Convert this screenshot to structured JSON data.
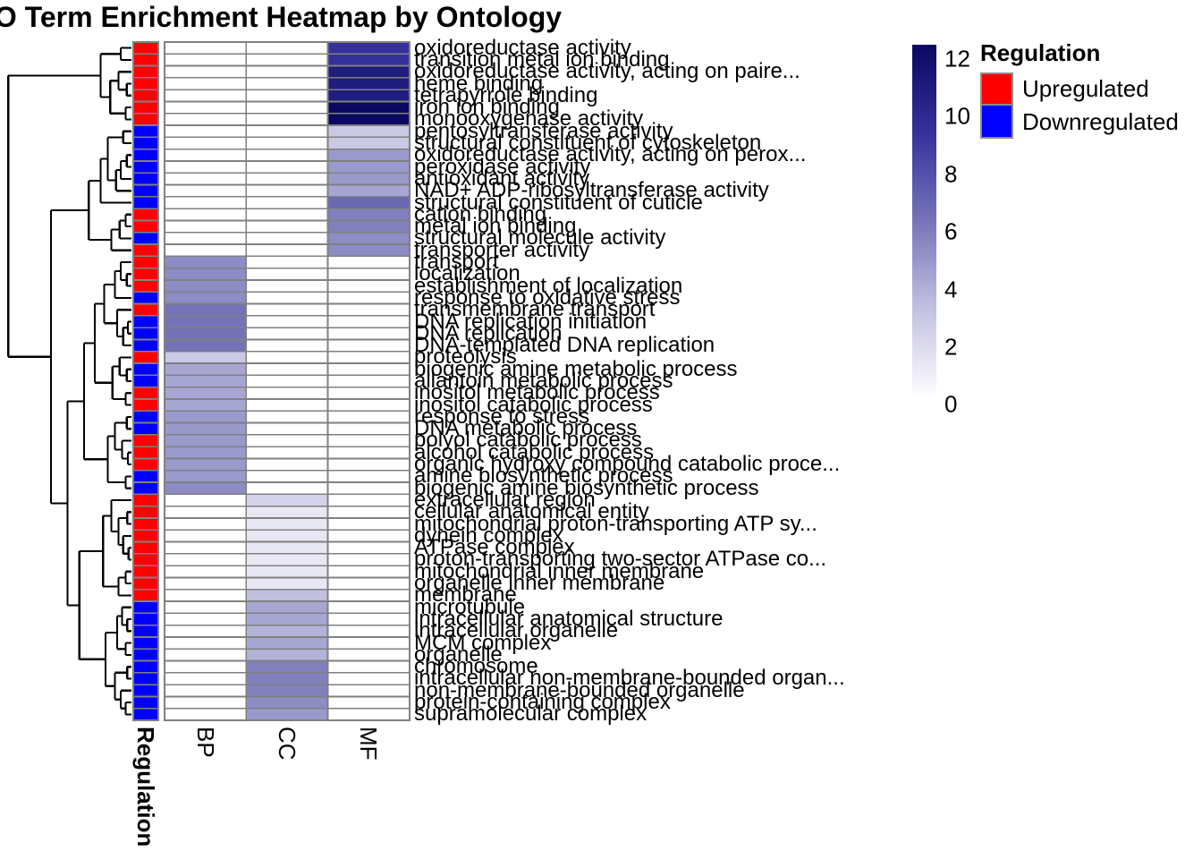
{
  "title": "GO Term Enrichment Heatmap by Ontology",
  "columns": {
    "annotation": "Regulation",
    "ontologies": [
      "BP",
      "CC",
      "MF"
    ]
  },
  "legend": {
    "title": "Regulation",
    "items": [
      {
        "label": "Upregulated",
        "color": "#FF0000"
      },
      {
        "label": "Downregulated",
        "color": "#0000FF"
      }
    ]
  },
  "colorbar": {
    "min": 0,
    "max": 12,
    "ticks": [
      12,
      10,
      8,
      6,
      4,
      2,
      0
    ],
    "stops": [
      {
        "v": 0,
        "c": "#FCFBFE"
      },
      {
        "v": 3,
        "c": "#C0BFE0"
      },
      {
        "v": 6,
        "c": "#7473B8"
      },
      {
        "v": 9,
        "c": "#34319B"
      },
      {
        "v": 12,
        "c": "#0A0860"
      }
    ]
  },
  "colors": {
    "grid": "#808080",
    "dendrogram": "#000000",
    "background": "#FFFFFF",
    "upregulated": "#FF0000",
    "downregulated": "#0000FF"
  },
  "chart_data": {
    "type": "heatmap",
    "title": "GO Term Enrichment Heatmap by Ontology",
    "columns": [
      "BP",
      "CC",
      "MF"
    ],
    "row_annotation_name": "Regulation",
    "scale": {
      "min": 0,
      "max": 12
    },
    "legend_position": "right",
    "rows": [
      {
        "label": "oxidoreductase activity",
        "regulation": "Upregulated",
        "ontology": "MF",
        "value": 9
      },
      {
        "label": "transition metal ion binding",
        "regulation": "Upregulated",
        "ontology": "MF",
        "value": 9
      },
      {
        "label": "oxidoreductase activity, acting on paire...",
        "regulation": "Upregulated",
        "ontology": "MF",
        "value": 10.5
      },
      {
        "label": "heme binding",
        "regulation": "Upregulated",
        "ontology": "MF",
        "value": 10.5
      },
      {
        "label": "tetrapyrrole binding",
        "regulation": "Upregulated",
        "ontology": "MF",
        "value": 10.5
      },
      {
        "label": "iron ion binding",
        "regulation": "Upregulated",
        "ontology": "MF",
        "value": 12
      },
      {
        "label": "monooxygenase activity",
        "regulation": "Upregulated",
        "ontology": "MF",
        "value": 12
      },
      {
        "label": "pentosyltransferase activity",
        "regulation": "Downregulated",
        "ontology": "MF",
        "value": 2.5
      },
      {
        "label": "structural constituent of cytoskeleton",
        "regulation": "Downregulated",
        "ontology": "MF",
        "value": 2.5
      },
      {
        "label": "oxidoreductase activity, acting on perox...",
        "regulation": "Downregulated",
        "ontology": "MF",
        "value": 4.5
      },
      {
        "label": "peroxidase activity",
        "regulation": "Downregulated",
        "ontology": "MF",
        "value": 4.5
      },
      {
        "label": "antioxidant activity",
        "regulation": "Downregulated",
        "ontology": "MF",
        "value": 4.5
      },
      {
        "label": "NAD+ ADP-ribosyltransferase activity",
        "regulation": "Downregulated",
        "ontology": "MF",
        "value": 4
      },
      {
        "label": "structural constituent of cuticle",
        "regulation": "Downregulated",
        "ontology": "MF",
        "value": 6.5
      },
      {
        "label": "cation binding",
        "regulation": "Upregulated",
        "ontology": "MF",
        "value": 5.5
      },
      {
        "label": "metal ion binding",
        "regulation": "Upregulated",
        "ontology": "MF",
        "value": 5.5
      },
      {
        "label": "structural molecule activity",
        "regulation": "Downregulated",
        "ontology": "MF",
        "value": 5
      },
      {
        "label": "transporter activity",
        "regulation": "Upregulated",
        "ontology": "MF",
        "value": 5
      },
      {
        "label": "transport",
        "regulation": "Upregulated",
        "ontology": "BP",
        "value": 5
      },
      {
        "label": "localization",
        "regulation": "Upregulated",
        "ontology": "BP",
        "value": 5
      },
      {
        "label": "establishment of localization",
        "regulation": "Upregulated",
        "ontology": "BP",
        "value": 5
      },
      {
        "label": "response to oxidative stress",
        "regulation": "Downregulated",
        "ontology": "BP",
        "value": 5
      },
      {
        "label": "transmembrane transport",
        "regulation": "Upregulated",
        "ontology": "BP",
        "value": 6
      },
      {
        "label": "DNA replication initiation",
        "regulation": "Downregulated",
        "ontology": "BP",
        "value": 6
      },
      {
        "label": "DNA replication",
        "regulation": "Downregulated",
        "ontology": "BP",
        "value": 6
      },
      {
        "label": "DNA-templated DNA replication",
        "regulation": "Downregulated",
        "ontology": "BP",
        "value": 6
      },
      {
        "label": "proteolysis",
        "regulation": "Upregulated",
        "ontology": "BP",
        "value": 2.5
      },
      {
        "label": "biogenic amine metabolic process",
        "regulation": "Downregulated",
        "ontology": "BP",
        "value": 4
      },
      {
        "label": "allantoin metabolic process",
        "regulation": "Downregulated",
        "ontology": "BP",
        "value": 4
      },
      {
        "label": "inositol metabolic process",
        "regulation": "Upregulated",
        "ontology": "BP",
        "value": 4
      },
      {
        "label": "inositol catabolic process",
        "regulation": "Upregulated",
        "ontology": "BP",
        "value": 4
      },
      {
        "label": "response to stress",
        "regulation": "Downregulated",
        "ontology": "BP",
        "value": 4.5
      },
      {
        "label": "DNA metabolic process",
        "regulation": "Downregulated",
        "ontology": "BP",
        "value": 4.5
      },
      {
        "label": "polyol catabolic process",
        "regulation": "Upregulated",
        "ontology": "BP",
        "value": 4.5
      },
      {
        "label": "alcohol catabolic process",
        "regulation": "Upregulated",
        "ontology": "BP",
        "value": 4.5
      },
      {
        "label": "organic hydroxy compound catabolic proce...",
        "regulation": "Upregulated",
        "ontology": "BP",
        "value": 4.5
      },
      {
        "label": "amine biosynthetic process",
        "regulation": "Downregulated",
        "ontology": "BP",
        "value": 4.5
      },
      {
        "label": "biogenic amine biosynthetic process",
        "regulation": "Downregulated",
        "ontology": "BP",
        "value": 5
      },
      {
        "label": "extracellular region",
        "regulation": "Upregulated",
        "ontology": "CC",
        "value": 2
      },
      {
        "label": "cellular anatomical entity",
        "regulation": "Upregulated",
        "ontology": "CC",
        "value": 1
      },
      {
        "label": "mitochondrial proton-transporting ATP sy...",
        "regulation": "Upregulated",
        "ontology": "CC",
        "value": 1
      },
      {
        "label": "dynein complex",
        "regulation": "Upregulated",
        "ontology": "CC",
        "value": 1
      },
      {
        "label": "ATPase complex",
        "regulation": "Upregulated",
        "ontology": "CC",
        "value": 1
      },
      {
        "label": "proton-transporting two-sector ATPase co...",
        "regulation": "Upregulated",
        "ontology": "CC",
        "value": 1
      },
      {
        "label": "mitochondrial inner membrane",
        "regulation": "Upregulated",
        "ontology": "CC",
        "value": 1
      },
      {
        "label": "organelle inner membrane",
        "regulation": "Upregulated",
        "ontology": "CC",
        "value": 1
      },
      {
        "label": "membrane",
        "regulation": "Upregulated",
        "ontology": "CC",
        "value": 3
      },
      {
        "label": "microtubule",
        "regulation": "Downregulated",
        "ontology": "CC",
        "value": 4
      },
      {
        "label": "intracellular anatomical structure",
        "regulation": "Downregulated",
        "ontology": "CC",
        "value": 4
      },
      {
        "label": "intracellular organelle",
        "regulation": "Downregulated",
        "ontology": "CC",
        "value": 3.5
      },
      {
        "label": "MCM complex",
        "regulation": "Downregulated",
        "ontology": "CC",
        "value": 4
      },
      {
        "label": "organelle",
        "regulation": "Downregulated",
        "ontology": "CC",
        "value": 3.5
      },
      {
        "label": "chromosome",
        "regulation": "Downregulated",
        "ontology": "CC",
        "value": 5.5
      },
      {
        "label": "intracellular non-membrane-bounded organ...",
        "regulation": "Downregulated",
        "ontology": "CC",
        "value": 5.5
      },
      {
        "label": "non-membrane-bounded organelle",
        "regulation": "Downregulated",
        "ontology": "CC",
        "value": 5.5
      },
      {
        "label": "protein-containing complex",
        "regulation": "Downregulated",
        "ontology": "CC",
        "value": 5
      },
      {
        "label": "supramolecular complex",
        "regulation": "Downregulated",
        "ontology": "CC",
        "value": 4.5
      }
    ],
    "row_dendrogram": {
      "d": 0.52,
      "c": [
        {
          "d": 0.13,
          "c": [
            {
              "d": 0.045,
              "c": [
                1,
                2
              ]
            },
            {
              "d": 0.09,
              "c": [
                {
                  "d": 0.055,
                  "c": [
                    3,
                    {
                      "d": 0.02,
                      "c": [
                        4,
                        5
                      ]
                    }
                  ]
                },
                {
                  "d": 0.025,
                  "c": [
                    6,
                    7
                  ]
                }
              ]
            }
          ]
        },
        {
          "d": 0.34,
          "c": [
            {
              "d": 0.18,
              "c": [
                {
                  "d": 0.13,
                  "c": [
                    {
                      "d": 0.1,
                      "c": [
                        {
                          "d": 0.035,
                          "c": [
                            8,
                            9
                          ]
                        },
                        {
                          "d": 0.065,
                          "c": [
                            {
                              "d": 0.045,
                              "c": [
                                {
                                  "d": 0.02,
                                  "c": [
                                    10,
                                    11
                                  ]
                                },
                                12
                              ]
                            },
                            13
                          ]
                        }
                      ]
                    },
                    14
                  ]
                },
                {
                  "d": 0.085,
                  "c": [
                    {
                      "d": 0.05,
                      "c": [
                        {
                          "d": 0.025,
                          "c": [
                            15,
                            16
                          ]
                        },
                        17
                      ]
                    },
                    18
                  ]
                }
              ]
            },
            {
              "d": 0.27,
              "c": [
                {
                  "d": 0.2,
                  "c": [
                    {
                      "d": 0.155,
                      "c": [
                        {
                          "d": 0.115,
                          "c": [
                            {
                              "d": 0.07,
                              "c": [
                                {
                                  "d": 0.045,
                                  "c": [
                                    19,
                                    {
                                      "d": 0.02,
                                      "c": [
                                        20,
                                        21
                                      ]
                                    }
                                  ]
                                },
                                22
                              ]
                            },
                            {
                              "d": 0.06,
                              "c": [
                                23,
                                {
                                  "d": 0.035,
                                  "c": [
                                    {
                                      "d": 0.015,
                                      "c": [
                                        24,
                                        25
                                      ]
                                    },
                                    26
                                  ]
                                }
                              ]
                            }
                          ]
                        },
                        {
                          "d": 0.08,
                          "c": [
                            {
                              "d": 0.05,
                              "c": [
                                27,
                                {
                                  "d": 0.02,
                                  "c": [
                                    28,
                                    29
                                  ]
                                }
                              ]
                            },
                            {
                              "d": 0.025,
                              "c": [
                                30,
                                31
                              ]
                            }
                          ]
                        }
                      ]
                    },
                    {
                      "d": 0.1,
                      "c": [
                        {
                          "d": 0.07,
                          "c": [
                            {
                              "d": 0.02,
                              "c": [
                                32,
                                33
                              ]
                            },
                            {
                              "d": 0.04,
                              "c": [
                                34,
                                {
                                  "d": 0.015,
                                  "c": [
                                    35,
                                    36
                                  ]
                                }
                              ]
                            }
                          ]
                        },
                        {
                          "d": 0.025,
                          "c": [
                            37,
                            38
                          ]
                        }
                      ]
                    }
                  ]
                },
                {
                  "d": 0.22,
                  "c": [
                    {
                      "d": 0.12,
                      "c": [
                        {
                          "d": 0.085,
                          "c": [
                            39,
                            {
                              "d": 0.055,
                              "c": [
                                {
                                  "d": 0.018,
                                  "c": [
                                    40,
                                    41
                                  ]
                                },
                                {
                                  "d": 0.035,
                                  "c": [
                                    42,
                                    {
                                      "d": 0.012,
                                      "c": [
                                        43,
                                        44
                                      ]
                                    }
                                  ]
                                }
                              ]
                            }
                          ]
                        },
                        {
                          "d": 0.055,
                          "c": [
                            {
                              "d": 0.025,
                              "c": [
                                45,
                                46
                              ]
                            },
                            47
                          ]
                        }
                      ]
                    },
                    {
                      "d": 0.11,
                      "c": [
                        {
                          "d": 0.06,
                          "c": [
                            {
                              "d": 0.04,
                              "c": [
                                48,
                                {
                                  "d": 0.018,
                                  "c": [
                                    49,
                                    50
                                  ]
                                }
                              ]
                            },
                            {
                              "d": 0.025,
                              "c": [
                                51,
                                52
                              ]
                            }
                          ]
                        },
                        {
                          "d": 0.07,
                          "c": [
                            {
                              "d": 0.018,
                              "c": [
                                53,
                                54
                              ]
                            },
                            {
                              "d": 0.045,
                              "c": [
                                55,
                                {
                                  "d": 0.025,
                                  "c": [
                                    56,
                                    57
                                  ]
                                }
                              ]
                            }
                          ]
                        }
                      ]
                    }
                  ]
                }
              ]
            }
          ]
        }
      ]
    }
  }
}
